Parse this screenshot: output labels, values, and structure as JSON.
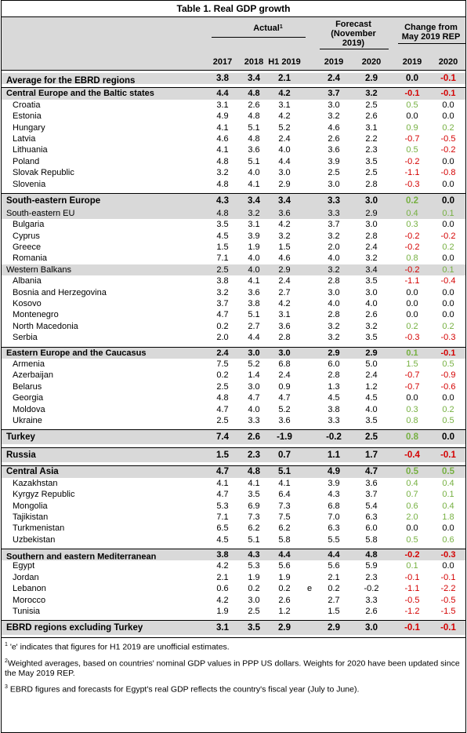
{
  "title": "Table 1. Real GDP growth",
  "headers": {
    "actual": "Actual",
    "actual_sup": "1",
    "forecast_l1": "Forecast",
    "forecast_l2": "(November",
    "forecast_l3": "2019)",
    "change_l1": "Change from",
    "change_l2": "May 2019 REP",
    "y2017": "2017",
    "y2018": "2018",
    "h1": "H1 2019",
    "f2019": "2019",
    "f2020": "2020",
    "c2019": "2019",
    "c2020": "2020"
  },
  "rows": [
    {
      "name": "Average for the EBRD regions",
      "sup": "2",
      "v": [
        "3.8",
        "3.4",
        "2.1",
        "2.4",
        "2.9",
        "0.0",
        "-0.1"
      ],
      "style": "boldrow grp",
      "sep_before": true
    },
    {
      "name": "Central Europe and the Baltic states",
      "v": [
        "4.4",
        "4.8",
        "4.2",
        "3.7",
        "3.2",
        "-0.1",
        "-0.1"
      ],
      "style": "bold grp",
      "sep_before": true
    },
    {
      "name": "Croatia",
      "v": [
        "3.1",
        "2.6",
        "3.1",
        "3.0",
        "2.5",
        "0.5",
        "0.0"
      ],
      "style": "sub"
    },
    {
      "name": "Estonia",
      "v": [
        "4.9",
        "4.8",
        "4.2",
        "3.2",
        "2.6",
        "0.0",
        "0.0"
      ],
      "style": "sub"
    },
    {
      "name": "Hungary",
      "v": [
        "4.1",
        "5.1",
        "5.2",
        "4.6",
        "3.1",
        "0.9",
        "0.2"
      ],
      "style": "sub"
    },
    {
      "name": "Latvia",
      "v": [
        "4.6",
        "4.8",
        "2.4",
        "2.6",
        "2.2",
        "-0.7",
        "-0.5"
      ],
      "style": "sub"
    },
    {
      "name": "Lithuania",
      "v": [
        "4.1",
        "3.6",
        "4.0",
        "3.6",
        "2.3",
        "0.5",
        "-0.2"
      ],
      "style": "sub"
    },
    {
      "name": "Poland",
      "v": [
        "4.8",
        "5.1",
        "4.4",
        "3.9",
        "3.5",
        "-0.2",
        "0.0"
      ],
      "style": "sub"
    },
    {
      "name": "Slovak Republic",
      "v": [
        "3.2",
        "4.0",
        "3.0",
        "2.5",
        "2.5",
        "-1.1",
        "-0.8"
      ],
      "style": "sub"
    },
    {
      "name": "Slovenia",
      "v": [
        "4.8",
        "4.1",
        "2.9",
        "3.0",
        "2.8",
        "-0.3",
        "0.0"
      ],
      "style": "sub"
    },
    {
      "name": "South-eastern Europe",
      "v": [
        "4.3",
        "3.4",
        "3.4",
        "3.3",
        "3.0",
        "0.2",
        "0.0"
      ],
      "style": "boldrow grp",
      "sep_before": true,
      "tall": true
    },
    {
      "name": "South-eastern EU",
      "v": [
        "4.8",
        "3.2",
        "3.6",
        "3.3",
        "2.9",
        "0.4",
        "0.1"
      ],
      "style": "grp"
    },
    {
      "name": "Bulgaria",
      "v": [
        "3.5",
        "3.1",
        "4.2",
        "3.7",
        "3.0",
        "0.3",
        "0.0"
      ],
      "style": "sub"
    },
    {
      "name": "Cyprus",
      "v": [
        "4.5",
        "3.9",
        "3.2",
        "3.2",
        "2.8",
        "-0.2",
        "-0.2"
      ],
      "style": "sub"
    },
    {
      "name": "Greece",
      "v": [
        "1.5",
        "1.9",
        "1.5",
        "2.0",
        "2.4",
        "-0.2",
        "0.2"
      ],
      "style": "sub"
    },
    {
      "name": "Romania",
      "v": [
        "7.1",
        "4.0",
        "4.6",
        "4.0",
        "3.2",
        "0.8",
        "0.0"
      ],
      "style": "sub"
    },
    {
      "name": "Western Balkans",
      "v": [
        "2.5",
        "4.0",
        "2.9",
        "3.2",
        "3.4",
        "-0.2",
        "0.1"
      ],
      "style": "grp"
    },
    {
      "name": "Albania",
      "v": [
        "3.8",
        "4.1",
        "2.4",
        "2.8",
        "3.5",
        "-1.1",
        "-0.4"
      ],
      "style": "sub"
    },
    {
      "name": "Bosnia and Herzegovina",
      "v": [
        "3.2",
        "3.6",
        "2.7",
        "3.0",
        "3.0",
        "0.0",
        "0.0"
      ],
      "style": "sub"
    },
    {
      "name": "Kosovo",
      "v": [
        "3.7",
        "3.8",
        "4.2",
        "4.0",
        "4.0",
        "0.0",
        "0.0"
      ],
      "style": "sub"
    },
    {
      "name": "Montenegro",
      "v": [
        "4.7",
        "5.1",
        "3.1",
        "2.8",
        "2.6",
        "0.0",
        "0.0"
      ],
      "style": "sub"
    },
    {
      "name": "North Macedonia",
      "v": [
        "0.2",
        "2.7",
        "3.6",
        "3.2",
        "3.2",
        "0.2",
        "0.2"
      ],
      "style": "sub"
    },
    {
      "name": "Serbia",
      "v": [
        "2.0",
        "4.4",
        "2.8",
        "3.2",
        "3.5",
        "-0.3",
        "-0.3"
      ],
      "style": "sub"
    },
    {
      "name": "Eastern Europe and the Caucasus",
      "v": [
        "2.4",
        "3.0",
        "3.0",
        "2.9",
        "2.9",
        "0.1",
        "-0.1"
      ],
      "style": "bold grp",
      "sep_before": true
    },
    {
      "name": "Armenia",
      "v": [
        "7.5",
        "5.2",
        "6.8",
        "6.0",
        "5.0",
        "1.5",
        "0.5"
      ],
      "style": "sub"
    },
    {
      "name": "Azerbaijan",
      "v": [
        "0.2",
        "1.4",
        "2.4",
        "2.8",
        "2.4",
        "-0.7",
        "-0.9"
      ],
      "style": "sub"
    },
    {
      "name": "Belarus",
      "v": [
        "2.5",
        "3.0",
        "0.9",
        "1.3",
        "1.2",
        "-0.7",
        "-0.6"
      ],
      "style": "sub"
    },
    {
      "name": "Georgia",
      "v": [
        "4.8",
        "4.7",
        "4.7",
        "4.5",
        "4.5",
        "0.0",
        "0.0"
      ],
      "style": "sub"
    },
    {
      "name": "Moldova",
      "v": [
        "4.7",
        "4.0",
        "5.2",
        "3.8",
        "4.0",
        "0.3",
        "0.2"
      ],
      "style": "sub"
    },
    {
      "name": "Ukraine",
      "v": [
        "2.5",
        "3.3",
        "3.6",
        "3.3",
        "3.5",
        "0.8",
        "0.5"
      ],
      "style": "sub"
    },
    {
      "name": "Turkey",
      "v": [
        "7.4",
        "2.6",
        "-1.9",
        "-0.2",
        "2.5",
        "0.8",
        "0.0"
      ],
      "style": "boldrow grp",
      "sep_before": true,
      "tall": true
    },
    {
      "name": "Russia",
      "v": [
        "1.5",
        "2.3",
        "0.7",
        "1.1",
        "1.7",
        "-0.4",
        "-0.1"
      ],
      "style": "boldrow grp",
      "sep_before": true,
      "tall": true
    },
    {
      "name": "Central Asia",
      "v": [
        "4.7",
        "4.8",
        "5.1",
        "4.9",
        "4.7",
        "0.5",
        "0.5"
      ],
      "style": "boldrow grp",
      "sep_before": true
    },
    {
      "name": "Kazakhstan",
      "v": [
        "4.1",
        "4.1",
        "4.1",
        "3.9",
        "3.6",
        "0.4",
        "0.4"
      ],
      "style": "sub"
    },
    {
      "name": "Kyrgyz Republic",
      "v": [
        "4.7",
        "3.5",
        "6.4",
        "4.3",
        "3.7",
        "0.7",
        "0.1"
      ],
      "style": "sub"
    },
    {
      "name": "Mongolia",
      "v": [
        "5.3",
        "6.9",
        "7.3",
        "6.8",
        "5.4",
        "0.6",
        "0.4"
      ],
      "style": "sub"
    },
    {
      "name": "Tajikistan",
      "v": [
        "7.1",
        "7.3",
        "7.5",
        "7.0",
        "6.3",
        "2.0",
        "1.8"
      ],
      "style": "sub"
    },
    {
      "name": "Turkmenistan",
      "v": [
        "6.5",
        "6.2",
        "6.2",
        "6.3",
        "6.0",
        "0.0",
        "0.0"
      ],
      "style": "sub"
    },
    {
      "name": "Uzbekistan",
      "v": [
        "4.5",
        "5.1",
        "5.8",
        "5.5",
        "5.8",
        "0.5",
        "0.6"
      ],
      "style": "sub"
    },
    {
      "name": "Southern and eastern Mediterranean",
      "sup": "3",
      "v": [
        "3.8",
        "4.3",
        "4.4",
        "4.4",
        "4.8",
        "-0.2",
        "-0.3"
      ],
      "style": "bold grp",
      "sep_before": true
    },
    {
      "name": "Egypt",
      "v": [
        "4.2",
        "5.3",
        "5.6",
        "5.6",
        "5.9",
        "0.1",
        "0.0"
      ],
      "style": "sub"
    },
    {
      "name": "Jordan",
      "v": [
        "2.1",
        "1.9",
        "1.9",
        "2.1",
        "2.3",
        "-0.1",
        "-0.1"
      ],
      "style": "sub"
    },
    {
      "name": "Lebanon",
      "v": [
        "0.6",
        "0.2",
        "0.2",
        "0.2",
        "-0.2",
        "-1.1",
        "-2.2"
      ],
      "style": "sub",
      "e": "e"
    },
    {
      "name": "Morocco",
      "v": [
        "4.2",
        "3.0",
        "2.6",
        "2.7",
        "3.3",
        "-0.5",
        "-0.5"
      ],
      "style": "sub"
    },
    {
      "name": "Tunisia",
      "v": [
        "1.9",
        "2.5",
        "1.2",
        "1.5",
        "2.6",
        "-1.2",
        "-1.5"
      ],
      "style": "sub"
    },
    {
      "name": "EBRD regions excluding Turkey",
      "v": [
        "3.1",
        "3.5",
        "2.9",
        "2.9",
        "3.0",
        "-0.1",
        "-0.1"
      ],
      "style": "boldrow grp",
      "sep_before": true,
      "tall": true
    }
  ],
  "footnotes": [
    {
      "sup": "1",
      "text": " 'e' indicates that figures for H1 2019 are unofficial estimates."
    },
    {
      "sup": "2",
      "text": "Weighted averages, based on countries' nominal GDP values in PPP US dollars. Weights for 2020 have been updated since the May 2019 REP."
    },
    {
      "sup": "3",
      "text": " EBRD figures and forecasts for Egypt's real GDP reflects the country's fiscal year (July to June)."
    }
  ],
  "colors": {
    "positive": "#76b041",
    "negative": "#d40000",
    "header_bg": "#d9d9d9"
  }
}
